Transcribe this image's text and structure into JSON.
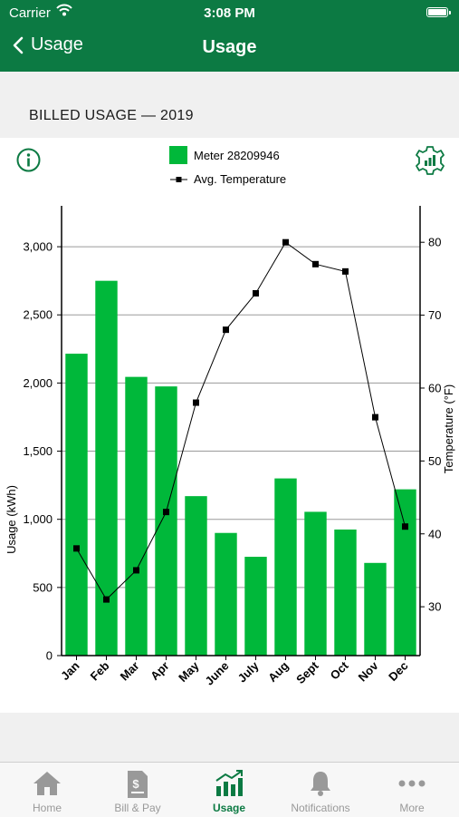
{
  "status_bar": {
    "carrier": "Carrier",
    "time": "3:08 PM"
  },
  "nav": {
    "back_label": "Usage",
    "title": "Usage"
  },
  "section_title": "BILLED USAGE — 2019",
  "colors": {
    "brand": "#0c7a43",
    "bar": "#00b83a",
    "line": "#000000",
    "tab_inactive": "#999999"
  },
  "icons": {
    "info": "info-circle-icon",
    "settings": "gear-chart-icon"
  },
  "chart_data": {
    "type": "bar+line",
    "legend": {
      "placement": "top-center"
    },
    "grid": true,
    "categories": [
      "Jan",
      "Feb",
      "Mar",
      "Apr",
      "May",
      "June",
      "July",
      "Aug",
      "Sept",
      "Oct",
      "Nov",
      "Dec"
    ],
    "series": [
      {
        "name": "Meter 28209946",
        "type": "bar",
        "axis": "left",
        "values": [
          2215,
          2750,
          2045,
          1975,
          1170,
          900,
          725,
          1300,
          1055,
          925,
          680,
          1220
        ]
      },
      {
        "name": "Avg. Temperature",
        "type": "line",
        "axis": "right",
        "values": [
          38,
          31,
          35,
          43,
          58,
          68,
          73,
          80,
          77,
          76,
          56,
          41
        ]
      }
    ],
    "ylabel_left": "Usage (kWh)",
    "ylabel_right": "Temperature (°F)",
    "ylim_left": [
      0,
      3300
    ],
    "yticks_left": [
      0,
      500,
      1000,
      1500,
      2000,
      2500,
      3000
    ],
    "ytick_labels_left": [
      "0",
      "500",
      "1,000",
      "1,500",
      "2,000",
      "2,500",
      "3,000"
    ],
    "ylim_right": [
      23.3,
      85
    ],
    "yticks_right": [
      30,
      40,
      50,
      60,
      70,
      80
    ],
    "ytick_labels_right": [
      "30",
      "40",
      "50",
      "60",
      "70",
      "80"
    ]
  },
  "tabs": [
    {
      "label": "Home",
      "icon": "home-icon",
      "active": false
    },
    {
      "label": "Bill & Pay",
      "icon": "bill-pay-icon",
      "active": false
    },
    {
      "label": "Usage",
      "icon": "usage-chart-icon",
      "active": true
    },
    {
      "label": "Notifications",
      "icon": "bell-icon",
      "active": false
    },
    {
      "label": "More",
      "icon": "more-dots-icon",
      "active": false
    }
  ]
}
